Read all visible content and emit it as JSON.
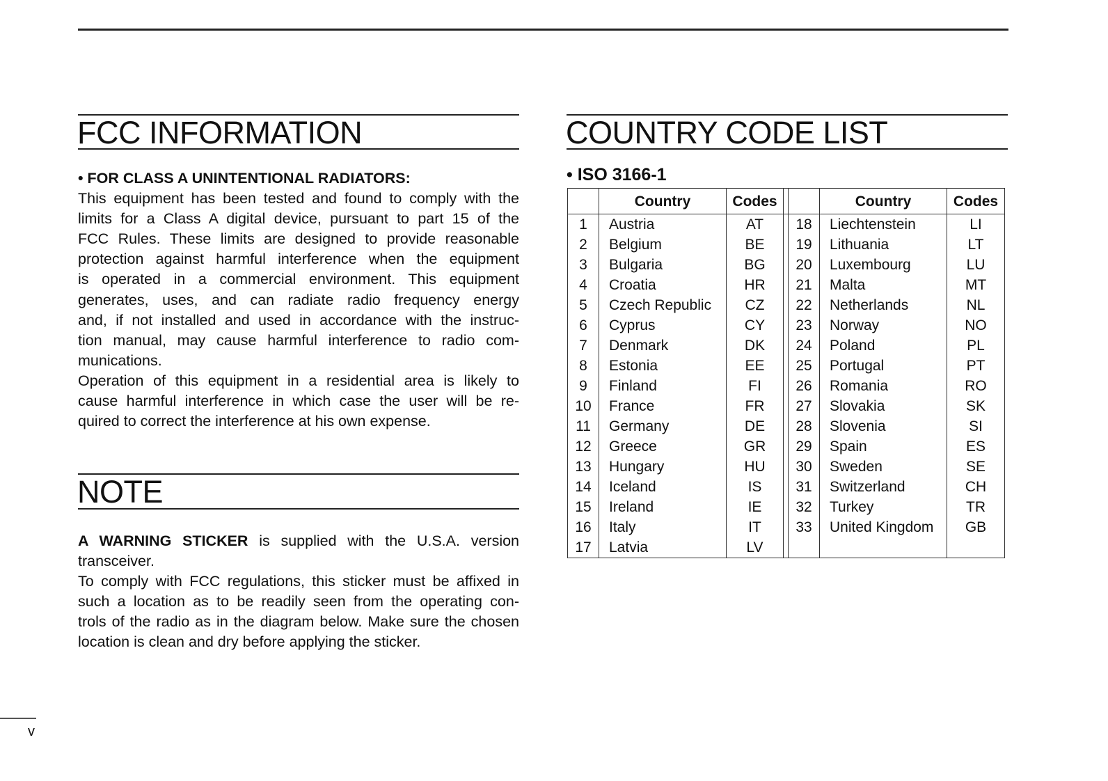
{
  "fcc": {
    "title": "FCC INFORMATION",
    "subheading": "• FOR CLASS A UNINTENTIONAL RADIATORS:",
    "lines": [
      "This equipment has been tested and found to comply with the",
      "limits for a Class A digital device, pursuant to part 15 of the",
      "FCC Rules. These limits are designed to provide reasonable",
      "protection against harmful interference when the equipment",
      "is operated in a commercial environment. This equipment",
      "generates, uses, and can radiate radio frequency energy",
      "and, if not installed and used in accordance with the instruc-",
      "tion manual, may cause harmful interference to radio com-",
      "munications."
    ],
    "lines2": [
      "Operation of this equipment in a residential area is likely to",
      "cause harmful interference in which case the user will be re-",
      "quired to correct the interference at his own expense."
    ]
  },
  "note": {
    "title": "NOTE",
    "bold_lead": "A WARNING STICKER",
    "lead_rest": " is supplied with the U.S.A. version",
    "lines": [
      "transceiver."
    ],
    "lines2": [
      "To comply with FCC regulations, this sticker must be affixed in",
      "such a location as to be readily seen from the operating con-",
      "trols of the radio as in the diagram below. Make sure the chosen",
      "location is clean and dry before applying the sticker."
    ]
  },
  "country": {
    "title": "COUNTRY CODE LIST",
    "subheading": "• ISO 3166-1",
    "header": {
      "country": "Country",
      "codes": "Codes"
    },
    "rows": [
      [
        "1",
        "Austria",
        "AT",
        "18",
        "Liechtenstein",
        "LI"
      ],
      [
        "2",
        "Belgium",
        "BE",
        "19",
        "Lithuania",
        "LT"
      ],
      [
        "3",
        "Bulgaria",
        "BG",
        "20",
        "Luxembourg",
        "LU"
      ],
      [
        "4",
        "Croatia",
        "HR",
        "21",
        "Malta",
        "MT"
      ],
      [
        "5",
        "Czech Republic",
        "CZ",
        "22",
        "Netherlands",
        "NL"
      ],
      [
        "6",
        "Cyprus",
        "CY",
        "23",
        "Norway",
        "NO"
      ],
      [
        "7",
        "Denmark",
        "DK",
        "24",
        "Poland",
        "PL"
      ],
      [
        "8",
        "Estonia",
        "EE",
        "25",
        "Portugal",
        "PT"
      ],
      [
        "9",
        "Finland",
        "FI",
        "26",
        "Romania",
        "RO"
      ],
      [
        "10",
        "France",
        "FR",
        "27",
        "Slovakia",
        "SK"
      ],
      [
        "11",
        "Germany",
        "DE",
        "28",
        "Slovenia",
        "SI"
      ],
      [
        "12",
        "Greece",
        "GR",
        "29",
        "Spain",
        "ES"
      ],
      [
        "13",
        "Hungary",
        "HU",
        "30",
        "Sweden",
        "SE"
      ],
      [
        "14",
        "Iceland",
        "IS",
        "31",
        "Switzerland",
        "CH"
      ],
      [
        "15",
        "Ireland",
        "IE",
        "32",
        "Turkey",
        "TR"
      ],
      [
        "16",
        "Italy",
        "IT",
        "33",
        "United Kingdom",
        "GB"
      ],
      [
        "17",
        "Latvia",
        "LV",
        "",
        "",
        ""
      ]
    ]
  },
  "page_number": "v"
}
